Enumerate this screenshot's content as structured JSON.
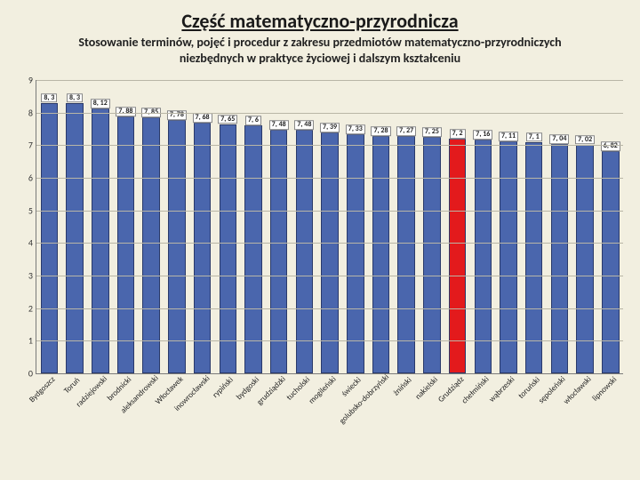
{
  "title": "Część matematyczno-przyrodnicza",
  "subtitle_line1": "Stosowanie terminów, pojęć i procedur z zakresu przedmiotów matematyczno-przyrodniczych",
  "subtitle_line2": "niezbędnych w praktyce życiowej i dalszym kształceniu",
  "chart": {
    "type": "bar",
    "ylim": [
      0,
      9
    ],
    "ytick_step": 1,
    "background_color": "#f2efe0",
    "grid_color": "#b9b6a6",
    "axis_color": "#7a7a7a",
    "bar_width": 0.68,
    "bar_border": "#2a3a6a",
    "label_bg": "#ffffff",
    "label_border": "#888888",
    "label_fontsize": 8,
    "tick_fontsize": 10,
    "xlabel_fontsize": 9,
    "xlabel_rotation": -45,
    "categories": [
      "Bydgoszcz",
      "Toruń",
      "radziejowski",
      "brodnicki",
      "aleksandrowski",
      "Włocławek",
      "inowrocławski",
      "rypiński",
      "bydgoski",
      "grudziądzki",
      "tucholski",
      "mogileński",
      "świecki",
      "golubsko-dobrzyński",
      "żniński",
      "nakielski",
      "Grudziądz",
      "chełmiński",
      "wąbrzeski",
      "toruński",
      "sępoleński",
      "włocławski",
      "lipnowski"
    ],
    "values": [
      8.3,
      8.3,
      8.12,
      7.88,
      7.85,
      7.78,
      7.68,
      7.65,
      7.6,
      7.48,
      7.48,
      7.39,
      7.33,
      7.28,
      7.27,
      7.25,
      7.2,
      7.16,
      7.11,
      7.1,
      7.04,
      7.02,
      6.82
    ],
    "value_labels": [
      "8, 3",
      "8, 3",
      "8, 12",
      "7, 88",
      "7, 85",
      "7, 78",
      "7, 68",
      "7, 65",
      "7, 6",
      "7, 48",
      "7, 48",
      "7, 39",
      "7, 33",
      "7, 28",
      "7, 27",
      "7, 25",
      "7, 2",
      "7, 16",
      "7, 11",
      "7, 1",
      "7, 04",
      "7, 02",
      "6, 82"
    ],
    "bar_colors": [
      "#4a66ad",
      "#4a66ad",
      "#4a66ad",
      "#4a66ad",
      "#4a66ad",
      "#4a66ad",
      "#4a66ad",
      "#4a66ad",
      "#4a66ad",
      "#4a66ad",
      "#4a66ad",
      "#4a66ad",
      "#4a66ad",
      "#4a66ad",
      "#4a66ad",
      "#4a66ad",
      "#e31a1c",
      "#4a66ad",
      "#4a66ad",
      "#4a66ad",
      "#4a66ad",
      "#4a66ad",
      "#4a66ad"
    ]
  }
}
